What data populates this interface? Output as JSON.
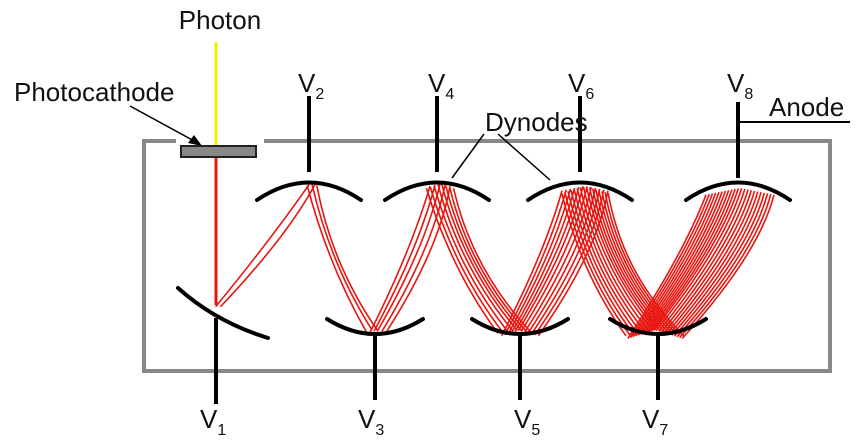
{
  "labels": {
    "photon": "Photon",
    "photocathode": "Photocathode",
    "dynodes": "Dynodes",
    "anode": "Anode"
  },
  "voltages": [
    {
      "letter": "V",
      "sub": "1"
    },
    {
      "letter": "V",
      "sub": "2"
    },
    {
      "letter": "V",
      "sub": "3"
    },
    {
      "letter": "V",
      "sub": "4"
    },
    {
      "letter": "V",
      "sub": "5"
    },
    {
      "letter": "V",
      "sub": "6"
    },
    {
      "letter": "V",
      "sub": "7"
    },
    {
      "letter": "V",
      "sub": "8"
    }
  ],
  "colors": {
    "tube": "#888888",
    "electron": "#e8140f",
    "photon": "#f0f000",
    "electrode": "#000000",
    "photocathode": "#888888"
  }
}
